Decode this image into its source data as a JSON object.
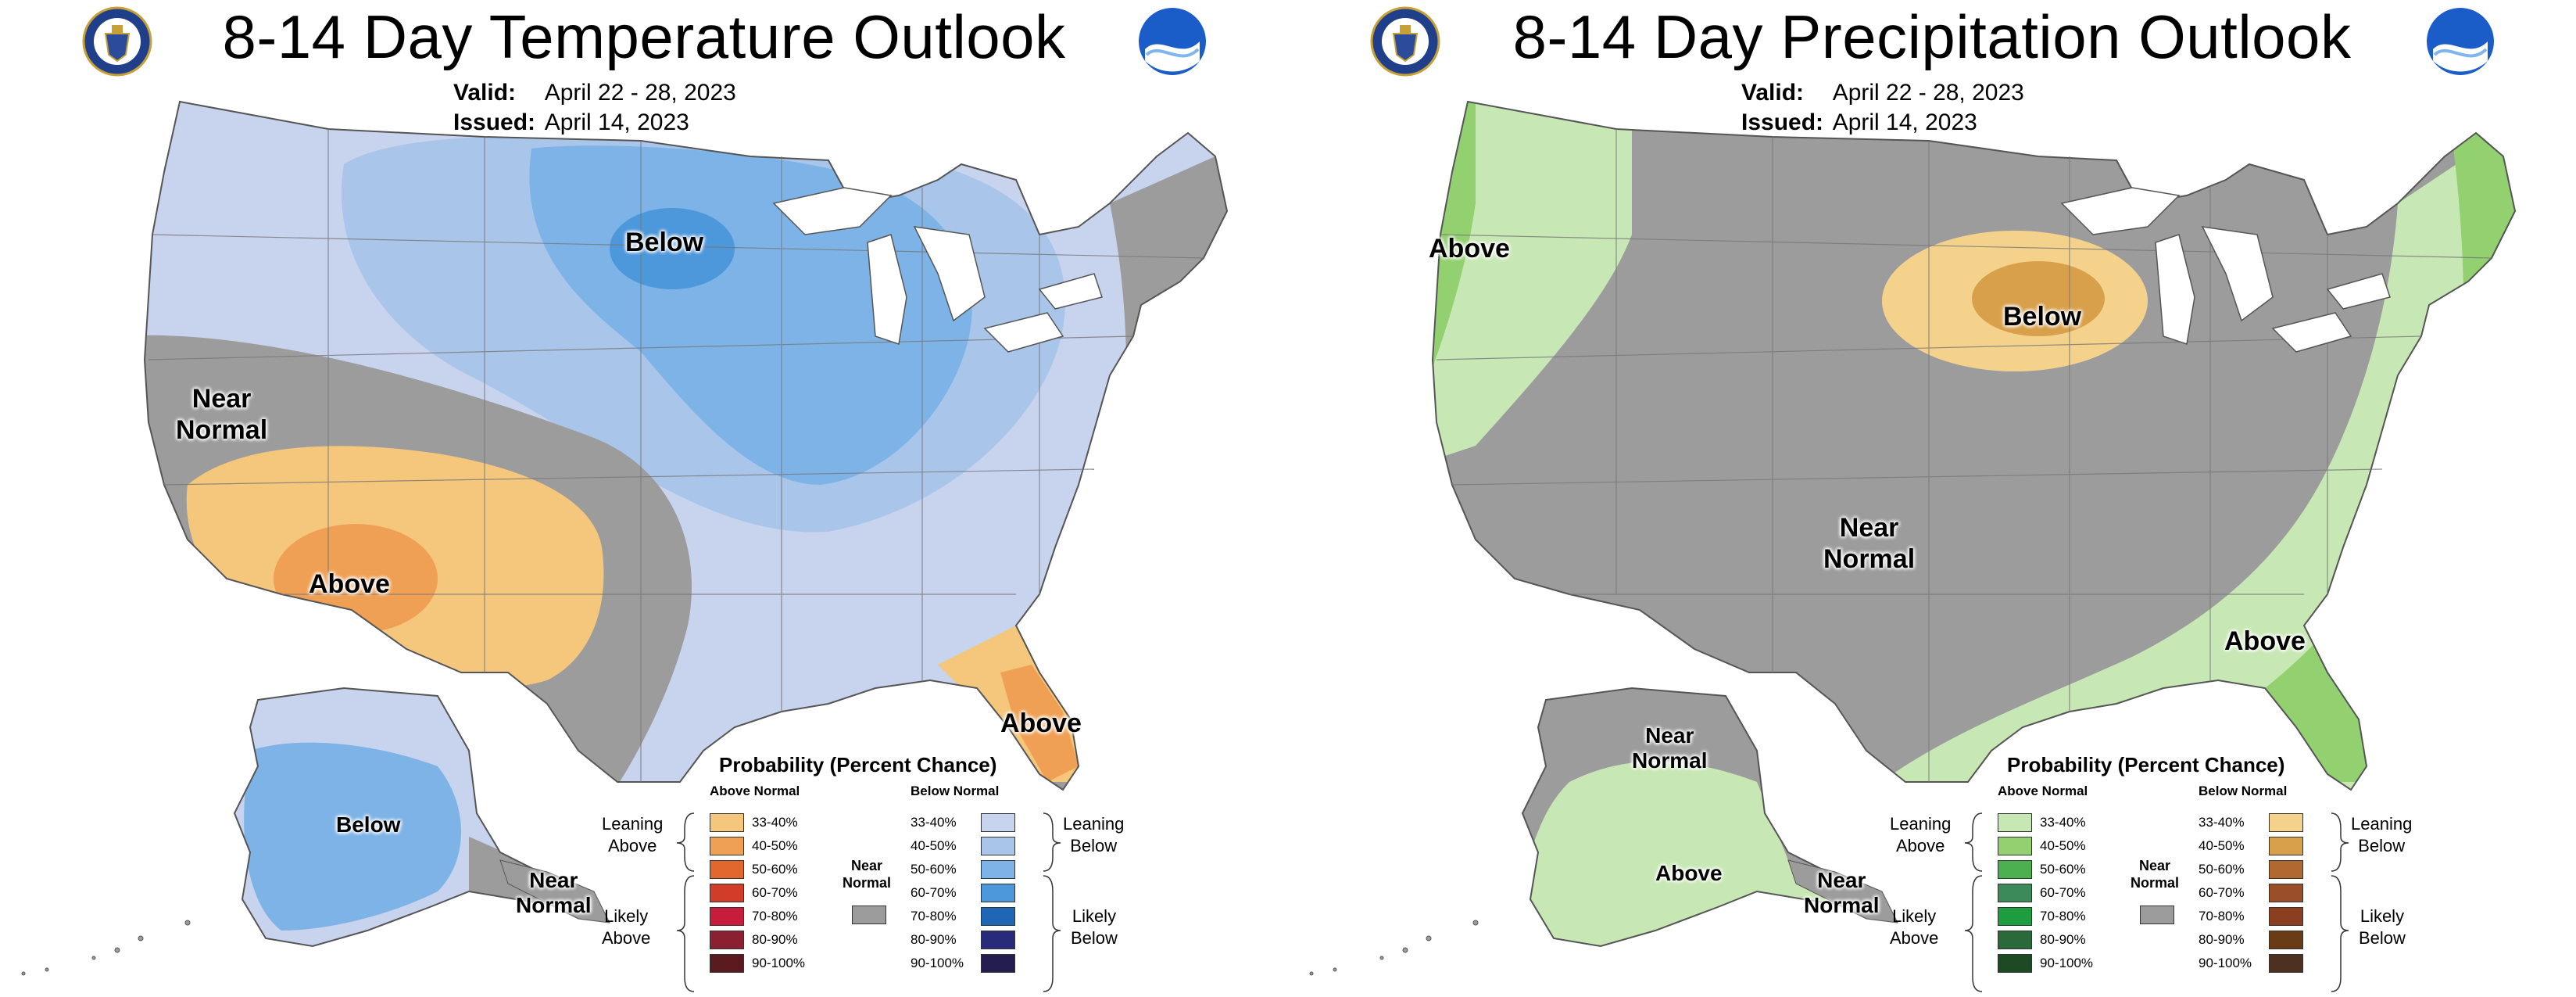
{
  "temperature": {
    "title": "8-14 Day Temperature Outlook",
    "valid_key": "Valid:",
    "valid_value": "April 22 - 28, 2023",
    "issued_key": "Issued:",
    "issued_value": "April 14, 2023",
    "labels": {
      "below_conus": "Below",
      "near_normal_west": "Near\nNormal",
      "above_sw": "Above",
      "above_fl": "Above",
      "below_ak": "Below",
      "near_normal_ak": "Near\nNormal"
    }
  },
  "precipitation": {
    "title": "8-14 Day Precipitation Outlook",
    "valid_key": "Valid:",
    "valid_value": "April 22 - 28, 2023",
    "issued_key": "Issued:",
    "issued_value": "April 14, 2023",
    "labels": {
      "above_nw": "Above",
      "below_plains": "Below",
      "near_normal_center": "Near\nNormal",
      "above_se": "Above",
      "near_normal_ak": "Near\nNormal",
      "above_ak": "Above",
      "near_normal_ak_se": "Near\nNormal"
    }
  },
  "legend": {
    "title": "Probability (Percent Chance)",
    "above_head": "Above Normal",
    "below_head": "Below Normal",
    "near_normal": "Near\nNormal",
    "leaning_above": "Leaning\nAbove",
    "likely_above": "Likely\nAbove",
    "leaning_below": "Leaning\nBelow",
    "likely_below": "Likely\nBelow",
    "ranges": [
      "33-40%",
      "40-50%",
      "50-60%",
      "60-70%",
      "70-80%",
      "80-90%",
      "90-100%"
    ]
  },
  "colors": {
    "near_normal": "#9c9c9c",
    "temp_above": [
      "#f5c77d",
      "#f0a054",
      "#e2672e",
      "#d23d2a",
      "#c81d3a",
      "#8c2033",
      "#5a1a20"
    ],
    "temp_below": [
      "#c8d3ee",
      "#a9c6ea",
      "#7db3e6",
      "#4d97db",
      "#1f66b4",
      "#2a2a7d",
      "#241d50"
    ],
    "precip_above": [
      "#c7e8b4",
      "#92d070",
      "#4caf50",
      "#3c8a5a",
      "#1e9c40",
      "#2a6a3a",
      "#1d4a22"
    ],
    "precip_below": [
      "#f5d28c",
      "#d8a04a",
      "#b06a30",
      "#9a4f28",
      "#8a4020",
      "#6a3c15",
      "#4e3020"
    ]
  }
}
